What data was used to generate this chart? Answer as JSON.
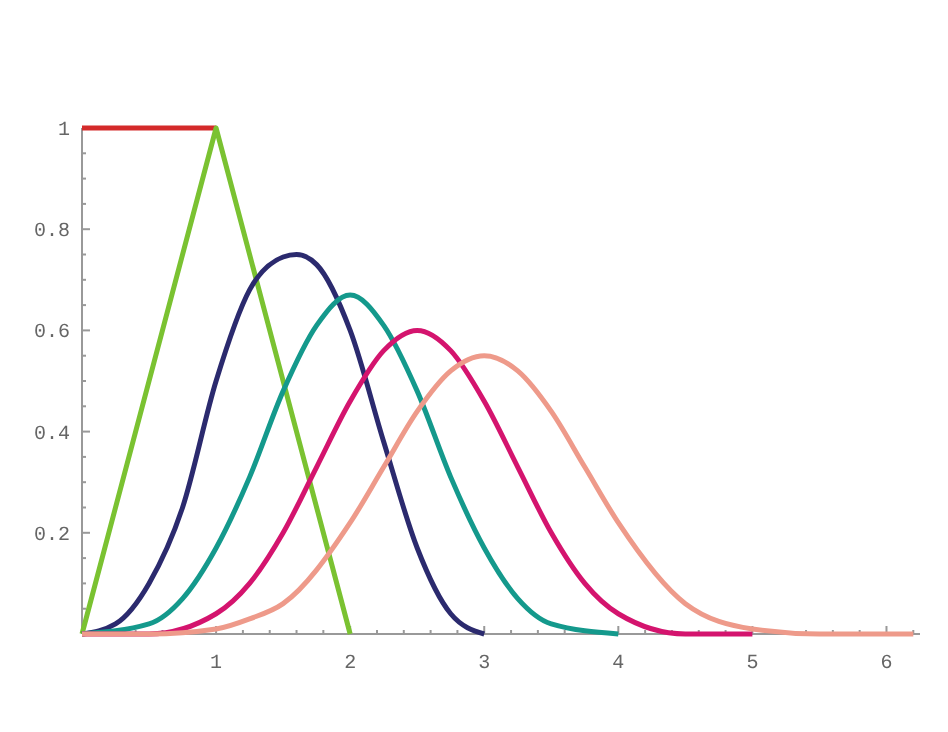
{
  "chart_data": {
    "type": "line",
    "xlim": [
      0,
      6.25
    ],
    "ylim": [
      0,
      1
    ],
    "xticks": [
      {
        "value": 0.2,
        "label": null
      },
      {
        "value": 0.4,
        "label": null
      },
      {
        "value": 0.6,
        "label": null
      },
      {
        "value": 0.8,
        "label": null
      },
      1,
      {
        "value": 1.2,
        "label": null
      },
      {
        "value": 1.4,
        "label": null
      },
      {
        "value": 1.6,
        "label": null
      },
      {
        "value": 1.8,
        "label": null
      },
      2,
      {
        "value": 2.2,
        "label": null
      },
      {
        "value": 2.4,
        "label": null
      },
      {
        "value": 2.6,
        "label": null
      },
      {
        "value": 2.8,
        "label": null
      },
      3,
      {
        "value": 3.2,
        "label": null
      },
      {
        "value": 3.4,
        "label": null
      },
      {
        "value": 3.6,
        "label": null
      },
      {
        "value": 3.8,
        "label": null
      },
      4,
      {
        "value": 4.2,
        "label": null
      },
      {
        "value": 4.4,
        "label": null
      },
      {
        "value": 4.6,
        "label": null
      },
      {
        "value": 4.8,
        "label": null
      },
      5,
      {
        "value": 5.2,
        "label": null
      },
      {
        "value": 5.4,
        "label": null
      },
      {
        "value": 5.6,
        "label": null
      },
      {
        "value": 5.8,
        "label": null
      },
      6,
      {
        "value": 6.2,
        "label": null
      }
    ],
    "yticks": [
      {
        "value": 0.05,
        "label": null
      },
      {
        "value": 0.1,
        "label": null
      },
      {
        "value": 0.15,
        "label": null
      },
      0.2,
      {
        "value": 0.25,
        "label": null
      },
      {
        "value": 0.3,
        "label": null
      },
      {
        "value": 0.35,
        "label": null
      },
      0.4,
      {
        "value": 0.45,
        "label": null
      },
      {
        "value": 0.5,
        "label": null
      },
      {
        "value": 0.55,
        "label": null
      },
      0.6,
      {
        "value": 0.65,
        "label": null
      },
      {
        "value": 0.7,
        "label": null
      },
      {
        "value": 0.75,
        "label": null
      },
      0.8,
      {
        "value": 0.85,
        "label": null
      },
      {
        "value": 0.9,
        "label": null
      },
      {
        "value": 0.95,
        "label": null
      },
      1
    ],
    "grid": false,
    "marker": "none",
    "line_style": "solid",
    "series": [
      {
        "color": "#d42a2a",
        "x": [
          0,
          1
        ],
        "values": [
          1,
          1
        ]
      },
      {
        "color": "#7ac231",
        "x": [
          0,
          1,
          2
        ],
        "values": [
          0,
          1,
          0
        ]
      },
      {
        "color": "#2b2a6e",
        "x": [
          0,
          0.25,
          0.5,
          0.75,
          1,
          1.25,
          1.5,
          1.6,
          1.75,
          2,
          2.25,
          2.5,
          2.75,
          3
        ],
        "values": [
          0,
          0.02,
          0.1,
          0.25,
          0.5,
          0.68,
          0.745,
          0.75,
          0.73,
          0.6,
          0.38,
          0.17,
          0.04,
          0
        ]
      },
      {
        "color": "#14998c",
        "x": [
          0,
          0.5,
          0.75,
          1,
          1.25,
          1.5,
          1.75,
          2,
          2.25,
          2.5,
          2.75,
          3,
          3.25,
          3.5,
          4
        ],
        "values": [
          0,
          0.02,
          0.07,
          0.17,
          0.31,
          0.48,
          0.61,
          0.67,
          0.61,
          0.48,
          0.31,
          0.17,
          0.07,
          0.02,
          0
        ]
      },
      {
        "color": "#d4146e",
        "x": [
          0,
          0.5,
          1,
          1.25,
          1.5,
          1.75,
          2,
          2.25,
          2.5,
          2.75,
          3,
          3.25,
          3.5,
          3.75,
          4,
          4.5,
          5
        ],
        "values": [
          0,
          0,
          0.04,
          0.1,
          0.2,
          0.33,
          0.46,
          0.56,
          0.6,
          0.56,
          0.46,
          0.33,
          0.2,
          0.1,
          0.04,
          0,
          0
        ]
      },
      {
        "color": "#ee9a8a",
        "x": [
          0,
          0.5,
          1,
          1.25,
          1.5,
          2,
          2.25,
          2.5,
          2.75,
          3,
          3.25,
          3.5,
          3.75,
          4,
          4.5,
          5,
          5.5,
          6,
          6.2
        ],
        "values": [
          0,
          0,
          0.01,
          0.03,
          0.06,
          0.22,
          0.33,
          0.44,
          0.52,
          0.55,
          0.52,
          0.44,
          0.33,
          0.22,
          0.06,
          0.01,
          0,
          0,
          0
        ]
      }
    ]
  }
}
